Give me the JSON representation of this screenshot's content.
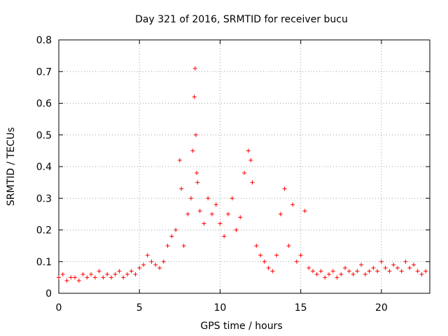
{
  "chart_data": {
    "type": "scatter",
    "title": "Day 321 of 2016, SRMTID for receiver bucu",
    "xlabel": "GPS time / hours",
    "ylabel": "SRMTID / TECUs",
    "xlim": [
      0,
      23
    ],
    "ylim": [
      0,
      0.8
    ],
    "xticks": [
      0,
      5,
      10,
      15,
      20
    ],
    "yticks": [
      0,
      0.1,
      0.2,
      0.3,
      0.4,
      0.5,
      0.6,
      0.7,
      0.8
    ],
    "grid": true,
    "marker": "+",
    "series": [
      {
        "name": "SRMTID",
        "color": "#ff0000",
        "x": [
          0.0,
          0.25,
          0.5,
          0.75,
          1.0,
          1.25,
          1.5,
          1.75,
          2.0,
          2.25,
          2.5,
          2.75,
          3.0,
          3.25,
          3.5,
          3.75,
          4.0,
          4.25,
          4.5,
          4.75,
          5.0,
          5.25,
          5.5,
          5.75,
          6.0,
          6.25,
          6.5,
          6.75,
          7.0,
          7.25,
          7.5,
          7.6,
          7.75,
          8.0,
          8.2,
          8.3,
          8.4,
          8.45,
          8.5,
          8.55,
          8.6,
          8.75,
          9.0,
          9.25,
          9.5,
          9.75,
          10.0,
          10.25,
          10.5,
          10.75,
          11.0,
          11.25,
          11.5,
          11.75,
          11.9,
          12.0,
          12.25,
          12.5,
          12.75,
          13.0,
          13.25,
          13.5,
          13.75,
          14.0,
          14.25,
          14.5,
          14.75,
          15.0,
          15.25,
          15.5,
          15.75,
          16.0,
          16.25,
          16.5,
          16.75,
          17.0,
          17.25,
          17.5,
          17.75,
          18.0,
          18.25,
          18.5,
          18.75,
          19.0,
          19.25,
          19.5,
          19.75,
          20.0,
          20.25,
          20.5,
          20.75,
          21.0,
          21.25,
          21.5,
          21.75,
          22.0,
          22.25,
          22.5,
          22.75
        ],
        "y": [
          0.05,
          0.06,
          0.04,
          0.05,
          0.05,
          0.04,
          0.06,
          0.05,
          0.06,
          0.05,
          0.07,
          0.05,
          0.06,
          0.05,
          0.06,
          0.07,
          0.05,
          0.06,
          0.07,
          0.06,
          0.08,
          0.09,
          0.12,
          0.1,
          0.09,
          0.08,
          0.1,
          0.15,
          0.18,
          0.2,
          0.42,
          0.33,
          0.15,
          0.25,
          0.3,
          0.45,
          0.62,
          0.71,
          0.5,
          0.38,
          0.35,
          0.26,
          0.22,
          0.3,
          0.25,
          0.28,
          0.22,
          0.18,
          0.25,
          0.3,
          0.2,
          0.24,
          0.38,
          0.45,
          0.42,
          0.35,
          0.15,
          0.12,
          0.1,
          0.08,
          0.07,
          0.12,
          0.25,
          0.33,
          0.15,
          0.28,
          0.1,
          0.12,
          0.26,
          0.08,
          0.07,
          0.06,
          0.07,
          0.05,
          0.06,
          0.07,
          0.05,
          0.06,
          0.08,
          0.07,
          0.06,
          0.07,
          0.09,
          0.06,
          0.07,
          0.08,
          0.07,
          0.1,
          0.08,
          0.07,
          0.09,
          0.08,
          0.07,
          0.1,
          0.08,
          0.09,
          0.07,
          0.06,
          0.07
        ]
      }
    ]
  }
}
